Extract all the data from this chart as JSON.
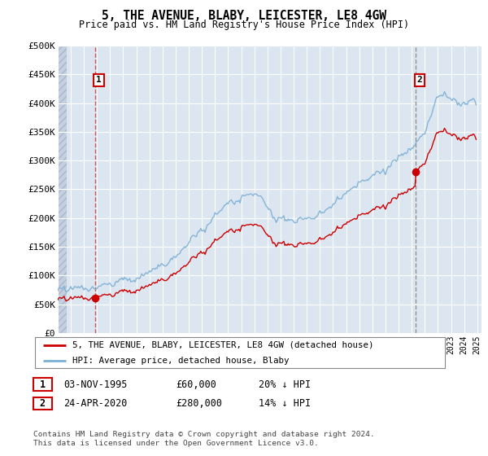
{
  "title": "5, THE AVENUE, BLABY, LEICESTER, LE8 4GW",
  "subtitle": "Price paid vs. HM Land Registry's House Price Index (HPI)",
  "ylim": [
    0,
    500000
  ],
  "yticks": [
    0,
    50000,
    100000,
    150000,
    200000,
    250000,
    300000,
    350000,
    400000,
    450000,
    500000
  ],
  "ytick_labels": [
    "£0",
    "£50K",
    "£100K",
    "£150K",
    "£200K",
    "£250K",
    "£300K",
    "£350K",
    "£400K",
    "£450K",
    "£500K"
  ],
  "hpi_color": "#7bafd4",
  "price_color": "#cc0000",
  "marker_color": "#cc0000",
  "dashed_line1_color": "#cc4444",
  "dashed_line2_color": "#888888",
  "annotation_box_color": "#cc0000",
  "background_color": "#dce6f1",
  "grid_color": "#ffffff",
  "transaction1": {
    "price": 60000,
    "x": 1995.84
  },
  "transaction2": {
    "price": 280000,
    "x": 2020.31
  },
  "legend_line1": "5, THE AVENUE, BLABY, LEICESTER, LE8 4GW (detached house)",
  "legend_line2": "HPI: Average price, detached house, Blaby",
  "footer1": "Contains HM Land Registry data © Crown copyright and database right 2024.",
  "footer2": "This data is licensed under the Open Government Licence v3.0.",
  "table_row1": [
    "1",
    "03-NOV-1995",
    "£60,000",
    "20% ↓ HPI"
  ],
  "table_row2": [
    "2",
    "24-APR-2020",
    "£280,000",
    "14% ↓ HPI"
  ]
}
